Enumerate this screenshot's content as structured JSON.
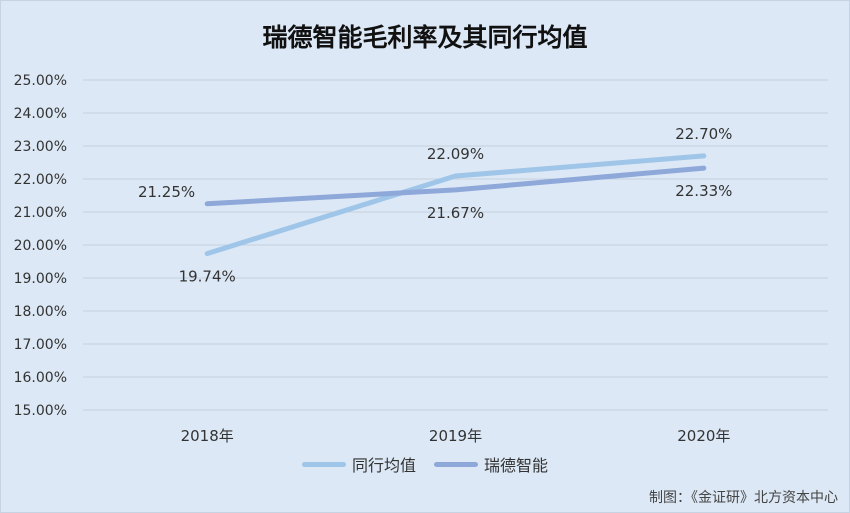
{
  "chart_data": {
    "type": "line",
    "title": "瑞德智能毛利率及其同行均值",
    "categories": [
      "2018年",
      "2019年",
      "2020年"
    ],
    "ylim": [
      15,
      25
    ],
    "ytick_step": 1,
    "ytick_labels": [
      "25.00%",
      "24.00%",
      "23.00%",
      "22.00%",
      "21.00%",
      "20.00%",
      "19.00%",
      "18.00%",
      "17.00%",
      "16.00%",
      "15.00%"
    ],
    "grid": true,
    "legend_position": "bottom",
    "series": [
      {
        "name": "同行均值",
        "values": [
          19.74,
          22.09,
          22.7
        ],
        "labels": [
          "19.74%",
          "22.09%",
          "22.70%"
        ],
        "label_positions": [
          "below",
          "above",
          "above"
        ],
        "color": "#9fc5e8"
      },
      {
        "name": "瑞德智能",
        "values": [
          21.25,
          21.67,
          22.33
        ],
        "labels": [
          "21.25%",
          "21.67%",
          "22.33%"
        ],
        "label_positions": [
          "left",
          "below",
          "below"
        ],
        "color": "#8fa8da"
      }
    ]
  },
  "credit": "制图：《金证研》北方资本中心"
}
